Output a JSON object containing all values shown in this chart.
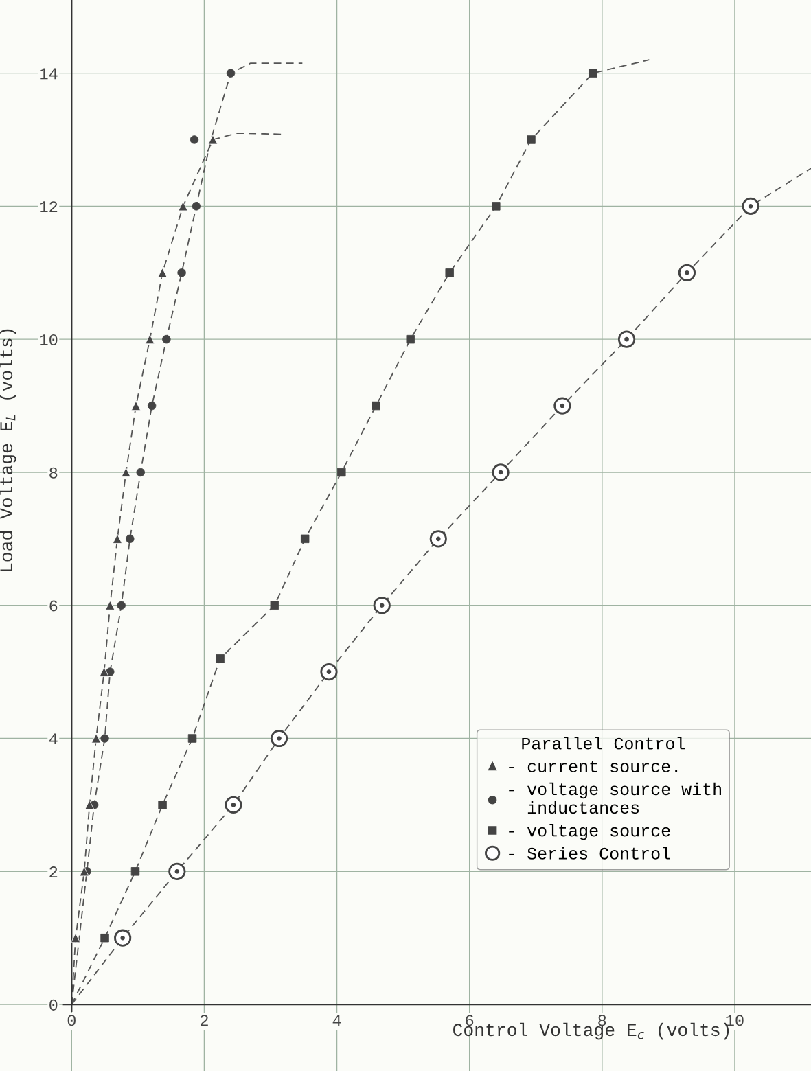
{
  "chart_data": {
    "type": "scatter",
    "xlabel": "Control Voltage E$_{c}$ (volts)",
    "ylabel": "Load Voltage E$_{L}$ (volts)",
    "legend_title": "Parallel Control",
    "xlim": [
      -1.08,
      11.15
    ],
    "ylim": [
      -1.0,
      15.1
    ],
    "xticks": [
      0,
      2,
      4,
      6,
      8,
      10
    ],
    "yticks": [
      0,
      2,
      4,
      6,
      8,
      10,
      12,
      14
    ],
    "grid": true,
    "legend": "bottom right",
    "series": [
      {
        "type": "line",
        "color": "#555555",
        "line_style": "dashed",
        "marker": "none",
        "x": [
          0,
          0.06,
          0.19,
          0.27,
          0.37,
          0.49,
          0.58,
          0.69,
          0.82,
          0.97,
          1.18,
          1.37,
          1.68,
          2.13,
          2.5,
          3.22
        ],
        "values": [
          0,
          1,
          2,
          3,
          4,
          5,
          6,
          7,
          8,
          9,
          10,
          11,
          12,
          13,
          13.1,
          13.08
        ]
      },
      {
        "type": "line",
        "color": "#555555",
        "line_style": "dashed",
        "marker": "none",
        "x": [
          0,
          0.23,
          0.34,
          0.5,
          0.58,
          0.75,
          0.88,
          1.04,
          1.21,
          1.43,
          1.66,
          1.88,
          2.1,
          2.4,
          2.7,
          3.48
        ],
        "values": [
          0,
          2,
          3,
          4,
          5,
          6,
          7,
          8,
          9,
          10,
          11,
          12,
          13,
          14,
          14.15,
          14.15
        ]
      },
      {
        "type": "line",
        "color": "#555555",
        "line_style": "dashed",
        "marker": "none",
        "x": [
          0,
          0.5,
          0.96,
          1.37,
          1.82,
          2.24,
          3.06,
          3.52,
          4.07,
          4.59,
          5.11,
          5.7,
          6.4,
          6.93,
          7.86,
          8.71
        ],
        "values": [
          0,
          1,
          2,
          3,
          4,
          5.2,
          6,
          7,
          8,
          9,
          10,
          11,
          12,
          13,
          14,
          14.2
        ]
      },
      {
        "type": "line",
        "color": "#555555",
        "line_style": "dashed",
        "marker": "none",
        "x": [
          0,
          0.77,
          1.59,
          2.44,
          3.13,
          3.88,
          4.68,
          5.53,
          6.47,
          7.4,
          8.37,
          9.28,
          10.24,
          11.15
        ],
        "values": [
          0,
          1,
          2,
          3,
          4,
          5,
          6,
          7,
          8,
          9,
          10,
          11,
          12,
          12.57
        ]
      },
      {
        "type": "scatter",
        "name": "- current source.",
        "color": "#444444",
        "marker": "triangle",
        "x": [
          0.06,
          0.19,
          0.27,
          0.37,
          0.49,
          0.58,
          0.69,
          0.82,
          0.97,
          1.18,
          1.37,
          1.68,
          2.13
        ],
        "values": [
          1,
          2,
          3,
          4,
          5,
          6,
          7,
          8,
          9,
          10,
          11,
          12,
          13
        ]
      },
      {
        "type": "scatter",
        "name": "- voltage source with\n  inductances",
        "color": "#444444",
        "marker": "circle",
        "x": [
          0.23,
          0.34,
          0.5,
          0.58,
          0.75,
          0.88,
          1.04,
          1.21,
          1.43,
          1.66,
          1.88,
          1.85,
          2.4
        ],
        "values": [
          2,
          3,
          4,
          5,
          6,
          7,
          8,
          9,
          10,
          11,
          12,
          13,
          14
        ]
      },
      {
        "type": "scatter",
        "name": "- voltage source",
        "color": "#444444",
        "marker": "square",
        "x": [
          0.5,
          0.96,
          1.37,
          1.82,
          2.24,
          3.06,
          3.52,
          4.07,
          4.59,
          5.11,
          5.7,
          6.4,
          6.93,
          7.86
        ],
        "values": [
          1,
          2,
          3,
          4,
          5.2,
          6,
          7,
          8,
          9,
          10,
          11,
          12,
          13,
          14
        ]
      },
      {
        "type": "scatter",
        "name": "- Series Control",
        "color": "#444444",
        "marker": "dotcircle",
        "x": [
          0.77,
          1.59,
          2.44,
          3.13,
          3.88,
          4.68,
          5.53,
          6.47,
          7.4,
          8.37,
          9.28,
          10.24
        ],
        "values": [
          1,
          2,
          3,
          4,
          5,
          6,
          7,
          8,
          9,
          10,
          11,
          12
        ]
      }
    ]
  }
}
